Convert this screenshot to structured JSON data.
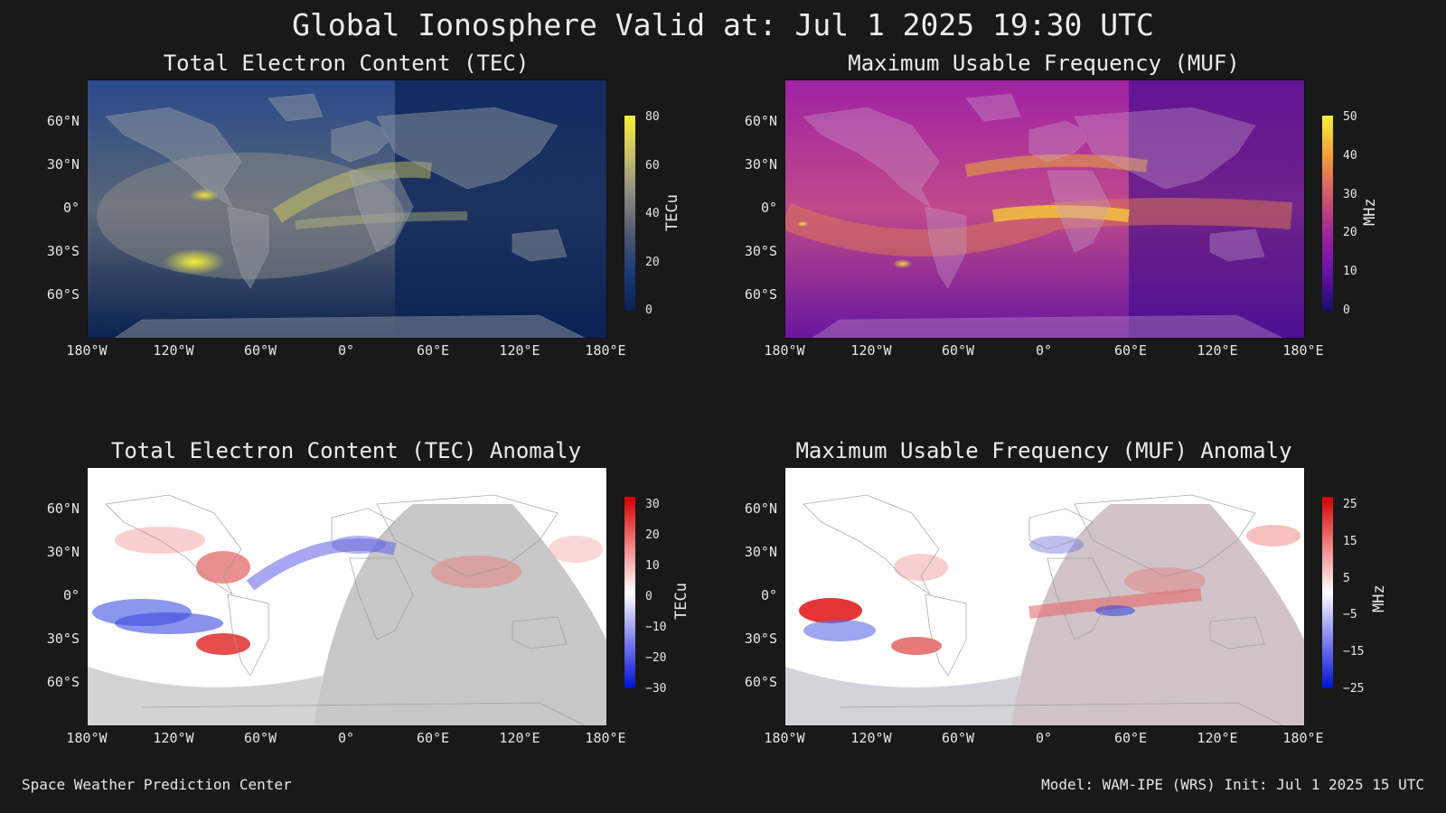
{
  "title": "Global Ionosphere Valid at: Jul 1 2025 19:30 UTC",
  "panels": [
    {
      "title": "Total Electron Content (TEC)",
      "units": "TECu",
      "cbar_ticks": [
        "80",
        "60",
        "40",
        "20",
        "0"
      ],
      "colors": [
        "#f4f03a",
        "#c9bf6b",
        "#8c8a85",
        "#505a70",
        "#1a3a78",
        "#0a2155"
      ]
    },
    {
      "title": "Maximum Usable Frequency (MUF)",
      "units": "MHz",
      "cbar_ticks": [
        "50",
        "40",
        "30",
        "20",
        "10",
        "0"
      ],
      "colors": [
        "#f6f13a",
        "#f3a03a",
        "#d45a6a",
        "#a0269a",
        "#6a10a8",
        "#1a0a6e"
      ]
    },
    {
      "title": "Total Electron Content (TEC) Anomaly",
      "units": "TECu",
      "cbar_ticks": [
        "30",
        "20",
        "10",
        "0",
        "−10",
        "−20",
        "−30"
      ],
      "colors": [
        "#d00000",
        "#f08080",
        "#ffffff",
        "#8080f0",
        "#0010d0"
      ]
    },
    {
      "title": "Maximum Usable Frequency (MUF) Anomaly",
      "units": "MHz",
      "cbar_ticks": [
        "25",
        "15",
        "5",
        "−5",
        "−15",
        "−25"
      ],
      "colors": [
        "#d00000",
        "#f08080",
        "#ffffff",
        "#8080f0",
        "#0010d0"
      ]
    }
  ],
  "lat_ticks": [
    "60°N",
    "30°N",
    "0°",
    "30°S",
    "60°S"
  ],
  "lon_ticks": [
    "180°W",
    "120°W",
    "60°W",
    "0°",
    "60°E",
    "120°E",
    "180°E"
  ],
  "footer_left": "Space Weather Prediction Center",
  "footer_right": "Model: WAM-IPE (WRS) Init: Jul 1 2025 15 UTC"
}
